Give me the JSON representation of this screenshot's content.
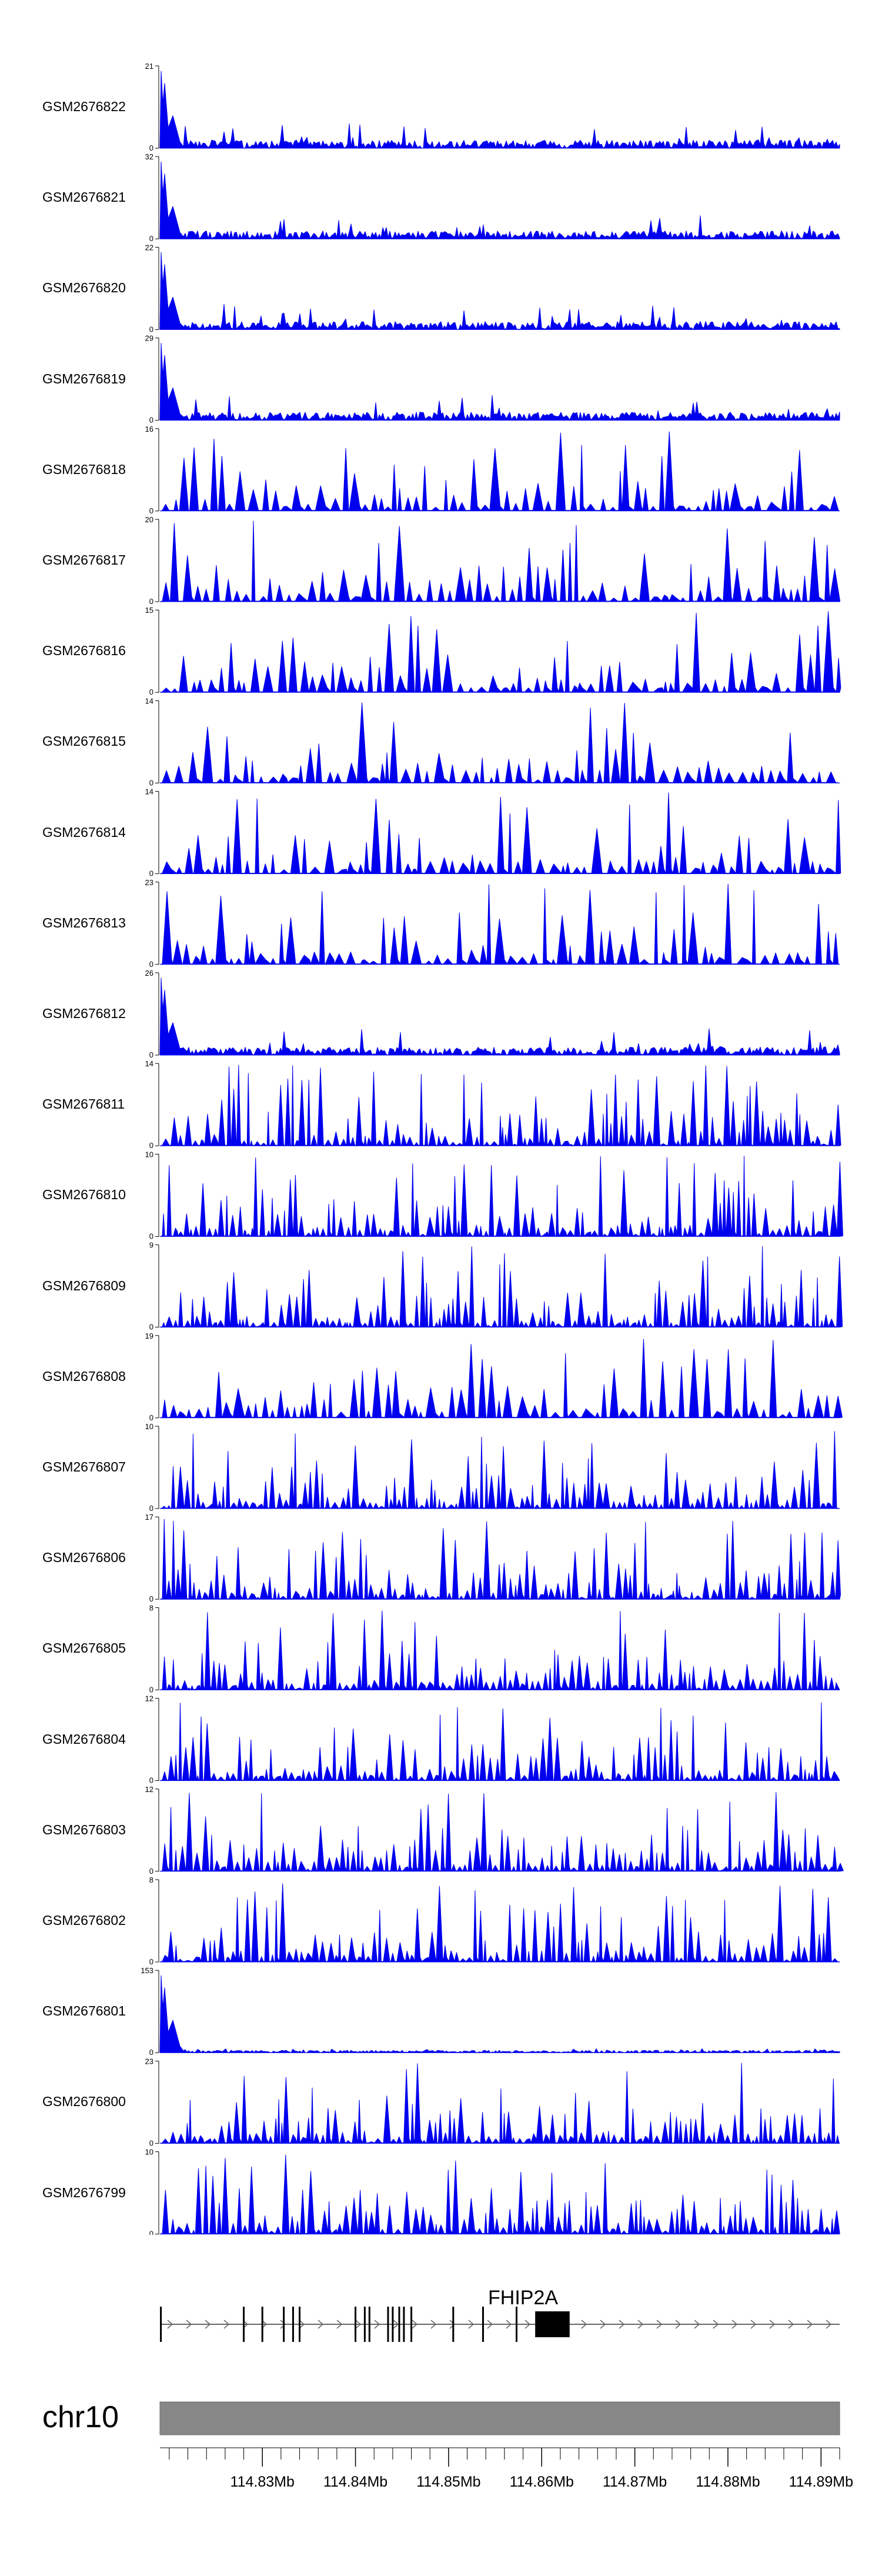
{
  "chart_data": {
    "type": "area",
    "color": "#0000ee",
    "x_range_mb": [
      114.819,
      114.892
    ],
    "tracks": [
      {
        "name": "GSM2676822",
        "ymax": 21,
        "ymin": 0,
        "style": "dense",
        "seed": 11
      },
      {
        "name": "GSM2676821",
        "ymax": 32,
        "ymin": 0,
        "style": "dense",
        "seed": 12
      },
      {
        "name": "GSM2676820",
        "ymax": 22,
        "ymin": 0,
        "style": "dense",
        "seed": 13
      },
      {
        "name": "GSM2676819",
        "ymax": 29,
        "ymin": 0,
        "style": "dense",
        "seed": 14
      },
      {
        "name": "GSM2676818",
        "ymax": 16,
        "ymin": 0,
        "style": "sparse",
        "seed": 15
      },
      {
        "name": "GSM2676817",
        "ymax": 20,
        "ymin": 0,
        "style": "sparse",
        "seed": 16
      },
      {
        "name": "GSM2676816",
        "ymax": 15,
        "ymin": 0,
        "style": "sparse",
        "seed": 17
      },
      {
        "name": "GSM2676815",
        "ymax": 14,
        "ymin": 0,
        "style": "sparse",
        "seed": 18
      },
      {
        "name": "GSM2676814",
        "ymax": 14,
        "ymin": 0,
        "style": "sparse",
        "seed": 19
      },
      {
        "name": "GSM2676813",
        "ymax": 23,
        "ymin": 0,
        "style": "sparse",
        "seed": 20
      },
      {
        "name": "GSM2676812",
        "ymax": 26,
        "ymin": 0,
        "style": "dense",
        "seed": 21
      },
      {
        "name": "GSM2676811",
        "ymax": 14,
        "ymin": 0,
        "style": "medium",
        "seed": 22
      },
      {
        "name": "GSM2676810",
        "ymax": 10,
        "ymin": 0,
        "style": "medium",
        "seed": 23
      },
      {
        "name": "GSM2676809",
        "ymax": 9,
        "ymin": 0,
        "style": "medium",
        "seed": 24
      },
      {
        "name": "GSM2676808",
        "ymax": 19,
        "ymin": 0,
        "style": "sparse",
        "seed": 25
      },
      {
        "name": "GSM2676807",
        "ymax": 10,
        "ymin": 0,
        "style": "medium",
        "seed": 26
      },
      {
        "name": "GSM2676806",
        "ymax": 17,
        "ymin": 0,
        "style": "medium",
        "seed": 27
      },
      {
        "name": "GSM2676805",
        "ymax": 8,
        "ymin": 0,
        "style": "medium",
        "seed": 28
      },
      {
        "name": "GSM2676804",
        "ymax": 12,
        "ymin": 0,
        "style": "medium",
        "seed": 29
      },
      {
        "name": "GSM2676803",
        "ymax": 12,
        "ymin": 0,
        "style": "medium",
        "seed": 30
      },
      {
        "name": "GSM2676802",
        "ymax": 8,
        "ymin": 0,
        "style": "medium",
        "seed": 31
      },
      {
        "name": "GSM2676801",
        "ymax": 153,
        "ymin": 0,
        "style": "flat",
        "seed": 32
      },
      {
        "name": "GSM2676800",
        "ymax": 23,
        "ymin": 0,
        "style": "medium",
        "seed": 33
      },
      {
        "name": "GSM2676799",
        "ymax": 10,
        "ymin": 0,
        "style": "medium",
        "seed": 34
      }
    ],
    "gene": {
      "name": "FHIP2A",
      "start_mb": 114.819,
      "end_mb": 114.892,
      "strand": "+",
      "exons_mb": [
        114.8191,
        114.828,
        114.83,
        114.8323,
        114.8333,
        114.834,
        114.84,
        114.841,
        114.8415,
        114.8435,
        114.844,
        114.8447,
        114.8452,
        114.846,
        114.8505,
        114.8537,
        114.8573
      ],
      "cds_block_mb": [
        114.8593,
        114.863
      ]
    },
    "chromosome": "chr10",
    "axis_ticks": [
      "114.83Mb",
      "114.84Mb",
      "114.85Mb",
      "114.86Mb",
      "114.87Mb",
      "114.88Mb",
      "114.89Mb"
    ],
    "axis_tick_values_mb": [
      114.83,
      114.84,
      114.85,
      114.86,
      114.87,
      114.88,
      114.89
    ]
  }
}
